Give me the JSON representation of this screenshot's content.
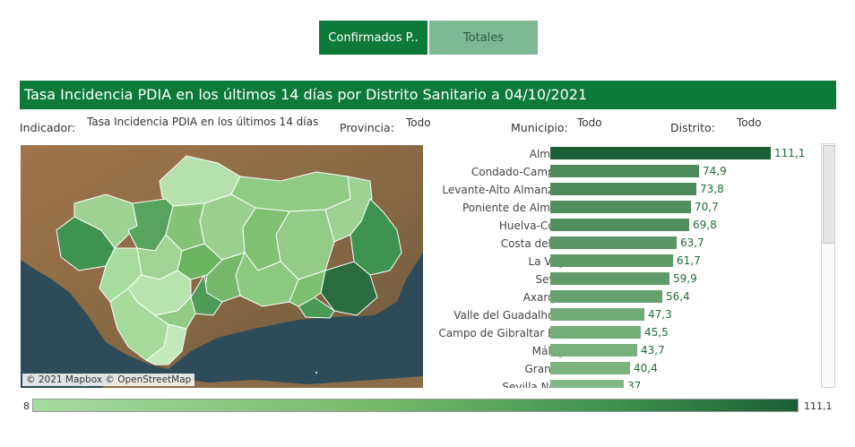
{
  "tabs": [
    {
      "label": "Confirmados P.."
    },
    {
      "label": "Totales"
    }
  ],
  "title": "Tasa Incidencia PDIA en los últimos 14 días por Distrito Sanitario a 04/10/2021",
  "filters": {
    "indicador": {
      "label": "Indicador:",
      "value": "Tasa Incidencia PDIA en los últimos 14 días"
    },
    "provincia": {
      "label": "Provincia:",
      "value": "Todo"
    },
    "municipio": {
      "label": "Municipio:",
      "value": "Todo"
    },
    "distrito": {
      "label": "Distrito:",
      "value": "Todo"
    }
  },
  "map": {
    "attribution": "© 2021 Mapbox © OpenStreetMap"
  },
  "legend": {
    "min": "8",
    "max": "111,1"
  },
  "colors": {
    "brand_green": "#0e7a3a",
    "tab_inactive": "#7dba94",
    "scale_low": "#a6dba0",
    "scale_high": "#1c5e35"
  },
  "chart_data": {
    "type": "bar",
    "orientation": "horizontal",
    "categories": [
      "Almería",
      "Condado-Campiña",
      "Levante-Alto Almanzora",
      "Poniente de Almería",
      "Huelva-Costa",
      "Costa del Sol",
      "La Vega",
      "Sevilla",
      "Axarquía",
      "Valle del Guadalhorce",
      "Campo de Gibraltar Este",
      "Málaga",
      "Granada",
      "Sevilla Norte"
    ],
    "values": [
      111.1,
      74.9,
      73.8,
      70.7,
      69.8,
      63.7,
      61.7,
      59.9,
      56.4,
      47.3,
      45.5,
      43.7,
      40.4,
      37
    ],
    "labels": [
      "111,1",
      "74,9",
      "73,8",
      "70,7",
      "69,8",
      "63,7",
      "61,7",
      "59,9",
      "56,4",
      "47,3",
      "45,5",
      "43,7",
      "40,4",
      "37"
    ],
    "color_scale": {
      "min": 8,
      "max": 111.1
    }
  }
}
